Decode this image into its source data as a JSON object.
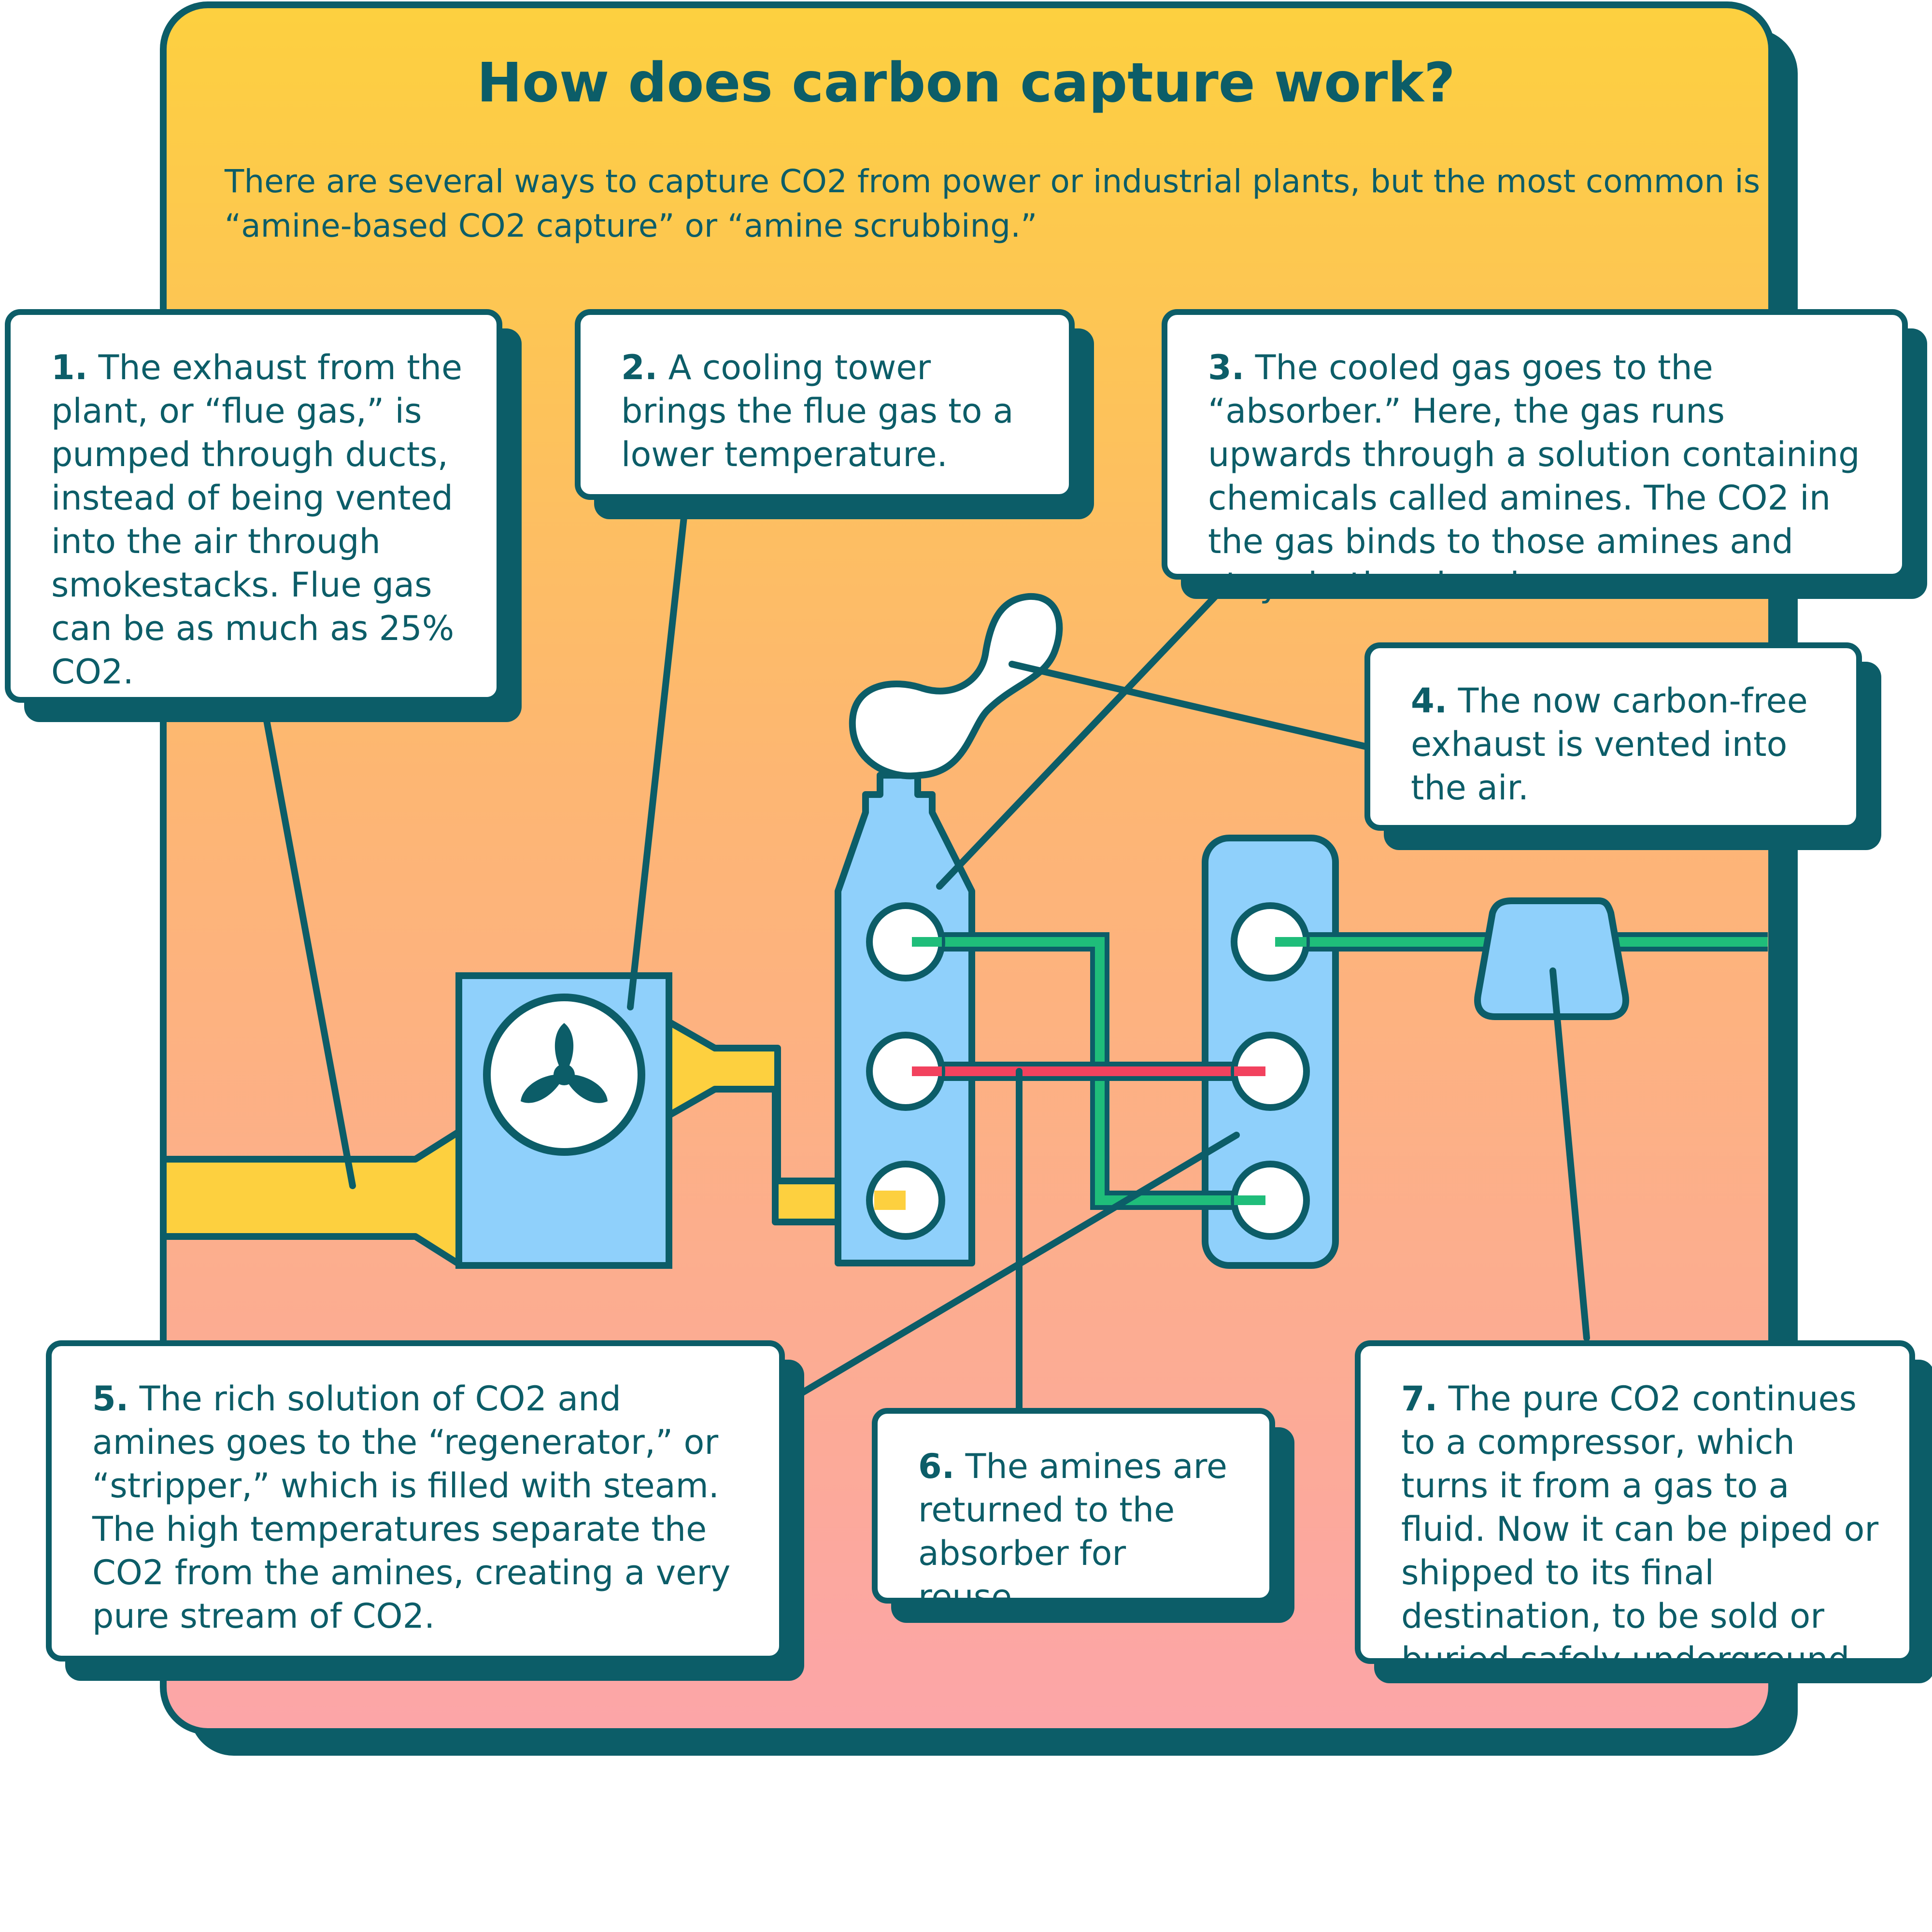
{
  "title": "How does carbon capture work?",
  "intro": "There are several ways to capture CO2 from power or industrial plants, but the most common is “amine-based CO2 capture” or “amine scrubbing.”",
  "colors": {
    "outline": "#0c5d68",
    "background_top": "#fdd03f",
    "background_bottom": "#fca5a8",
    "equipment_blue": "#8fd0fb",
    "flue_gas_pipe": "#fdd03f",
    "co2_pipe": "#1fbd7a",
    "amine_pipe": "#f2425e",
    "callout_bg": "#ffffff"
  },
  "icons": [
    "fan-icon",
    "smoke-cloud-icon"
  ],
  "callouts": [
    {
      "num": "1.",
      "text": "The exhaust from the plant, or “flue gas,” is pumped through ducts, instead of being vented into the air through smokestacks. Flue gas can be as much as 25% CO2."
    },
    {
      "num": "2.",
      "text": "A cooling tower brings the flue gas to a lower temperature."
    },
    {
      "num": "3.",
      "text": "The cooled gas goes to the “absorber.” Here, the gas runs upwards through a solution containing chemicals called amines. The CO2 in the gas binds to those amines and stays in the absorber."
    },
    {
      "num": "4.",
      "text": "The now carbon-free exhaust is vented into the air."
    },
    {
      "num": "5.",
      "text": "The rich solution of CO2 and amines goes to the “regenerator,” or “stripper,” which is filled with steam. The high temperatures separate the CO2 from the amines, creating a very pure stream of CO2."
    },
    {
      "num": "6.",
      "text": "The amines are returned to the absorber for reuse."
    },
    {
      "num": "7.",
      "text": "The pure CO2 continues to a compressor, which turns it from a gas to a fluid. Now it can be piped or shipped to its final destination, to be sold or buried safely underground."
    }
  ]
}
